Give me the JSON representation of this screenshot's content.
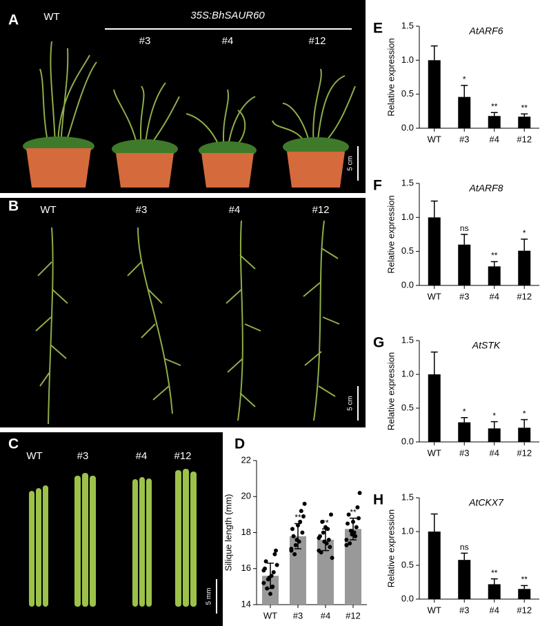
{
  "photos": {
    "A": {
      "letter": "A",
      "labels": [
        "WT",
        "#3",
        "#4",
        "#12"
      ],
      "group": "35S:BhSAUR60",
      "scale": "5 cm"
    },
    "B": {
      "letter": "B",
      "labels": [
        "WT",
        "#3",
        "#4",
        "#12"
      ],
      "scale": "5 cm"
    },
    "C": {
      "letter": "C",
      "labels": [
        "WT",
        "#3",
        "#4",
        "#12"
      ],
      "scale": "5 mm"
    }
  },
  "chart_data": [
    {
      "type": "bar",
      "letter": "D",
      "ylabel": "Silique length (mm)",
      "categories": [
        "WT",
        "#3",
        "#4",
        "#12"
      ],
      "values": [
        15.6,
        17.8,
        17.6,
        18.2
      ],
      "errors": [
        0.7,
        0.7,
        0.6,
        0.6
      ],
      "annotations": [
        null,
        "**",
        "**",
        "**"
      ],
      "points": [
        [
          15.2,
          15.6,
          16.0,
          15.0,
          16.4,
          15.8,
          14.9,
          16.8,
          15.4,
          17.0,
          15.5,
          16.2,
          14.6,
          15.9
        ],
        [
          17.0,
          17.5,
          18.2,
          18.6,
          17.8,
          19.2,
          16.8,
          18.0,
          17.3,
          18.9,
          17.6,
          19.6,
          18.4,
          17.1
        ],
        [
          17.0,
          17.4,
          17.8,
          18.2,
          16.9,
          17.6,
          18.6,
          17.2,
          18.0,
          19.0,
          17.5,
          16.6,
          18.3,
          17.7
        ],
        [
          17.6,
          18.0,
          18.5,
          17.8,
          19.0,
          18.3,
          17.4,
          19.4,
          18.1,
          18.8,
          17.9,
          20.2,
          18.6,
          17.3
        ]
      ],
      "color": "#999999",
      "ylim": [
        14,
        22
      ],
      "yticks": [
        14,
        16,
        18,
        20,
        22
      ]
    },
    {
      "type": "bar",
      "letter": "E",
      "title": "AtARF6",
      "ylabel": "Relative expression",
      "categories": [
        "WT",
        "#3",
        "#4",
        "#12"
      ],
      "values": [
        1.0,
        0.46,
        0.18,
        0.17
      ],
      "errors": [
        0.21,
        0.17,
        0.05,
        0.04
      ],
      "annotations": [
        null,
        "*",
        "**",
        "**"
      ],
      "color": "#000000",
      "ylim": [
        0,
        1.5
      ],
      "yticks": [
        {
          "value": 0,
          "label": "0.0"
        },
        0.5,
        {
          "value": 1,
          "label": "1.0"
        },
        1.5
      ]
    },
    {
      "type": "bar",
      "letter": "F",
      "title": "AtARF8",
      "ylabel": "Relative expression",
      "categories": [
        "WT",
        "#3",
        "#4",
        "#12"
      ],
      "values": [
        1.0,
        0.6,
        0.28,
        0.51
      ],
      "errors": [
        0.24,
        0.15,
        0.07,
        0.17
      ],
      "annotations": [
        null,
        "ns",
        "**",
        "*"
      ],
      "color": "#000000",
      "ylim": [
        0,
        1.5
      ],
      "yticks": [
        {
          "value": 0,
          "label": "0.0"
        },
        0.5,
        {
          "value": 1,
          "label": "1.0"
        },
        1.5
      ]
    },
    {
      "type": "bar",
      "letter": "G",
      "title": "AtSTK",
      "ylabel": "Relative expression",
      "categories": [
        "WT",
        "#3",
        "#4",
        "#12"
      ],
      "values": [
        1.0,
        0.29,
        0.2,
        0.21
      ],
      "errors": [
        0.33,
        0.07,
        0.1,
        0.12
      ],
      "annotations": [
        null,
        "*",
        "*",
        "*"
      ],
      "color": "#000000",
      "ylim": [
        0,
        1.5
      ],
      "yticks": [
        {
          "value": 0,
          "label": "0.0"
        },
        0.5,
        {
          "value": 1,
          "label": "1.0"
        },
        1.5
      ]
    },
    {
      "type": "bar",
      "letter": "H",
      "title": "AtCKX7",
      "ylabel": "Relative expression",
      "categories": [
        "WT",
        "#3",
        "#4",
        "#12"
      ],
      "values": [
        1.0,
        0.58,
        0.22,
        0.15
      ],
      "errors": [
        0.26,
        0.1,
        0.08,
        0.05
      ],
      "annotations": [
        null,
        "ns",
        "**",
        "**"
      ],
      "color": "#000000",
      "ylim": [
        0,
        1.5
      ],
      "yticks": [
        {
          "value": 0,
          "label": "0.0"
        },
        0.5,
        {
          "value": 1,
          "label": "1.0"
        },
        1.5
      ]
    }
  ]
}
